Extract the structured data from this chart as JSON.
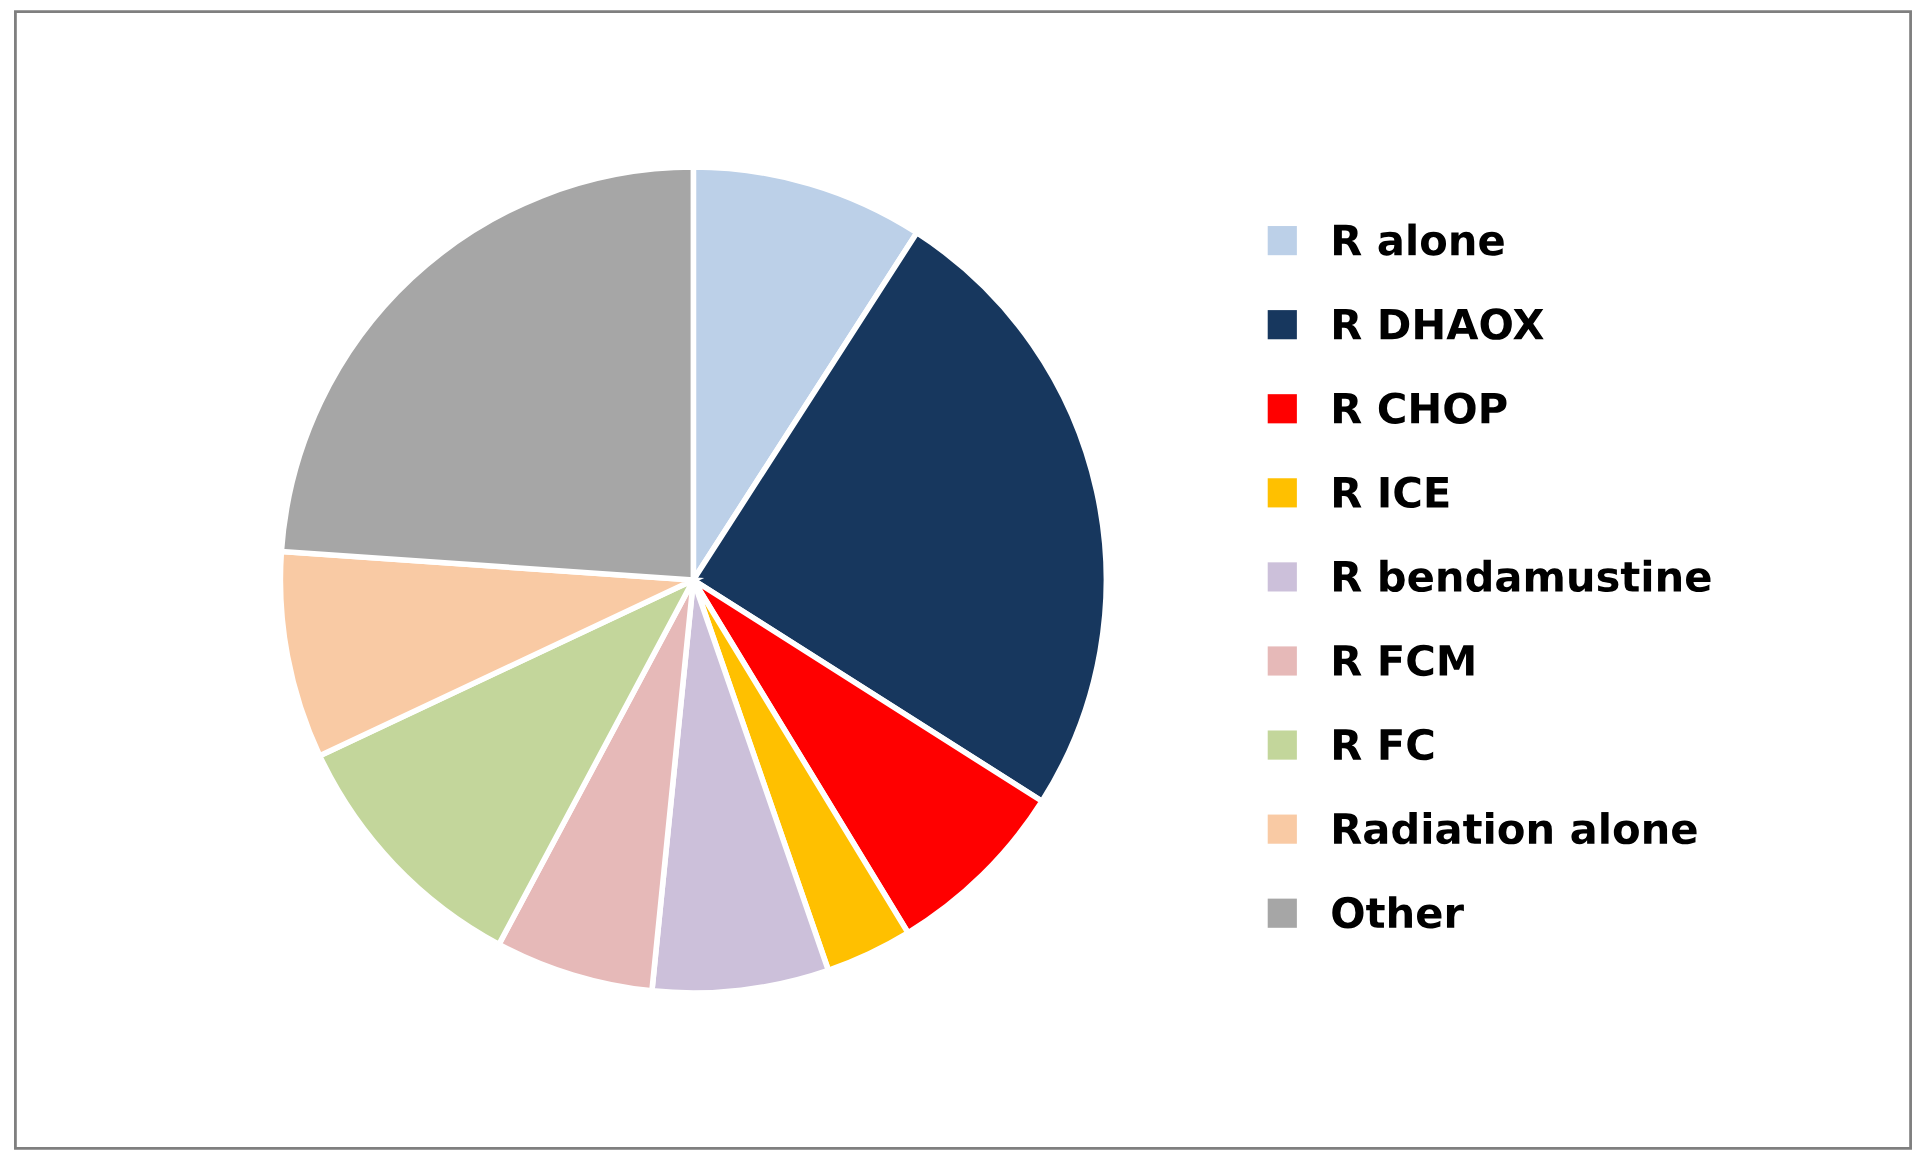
{
  "chart_data": {
    "type": "pie",
    "categories": [
      "R alone",
      "R DHAOX",
      "R CHOP",
      "R ICE",
      "R bendamustine",
      "R FCM",
      "R FC",
      "Radiation alone",
      "Other"
    ],
    "values": [
      9.1,
      24.9,
      7.3,
      3.4,
      6.9,
      6.2,
      10.2,
      8.1,
      23.9
    ],
    "colors": [
      "#bcd0e8",
      "#17375e",
      "#ff0000",
      "#ffc000",
      "#ccc0da",
      "#e6b9b8",
      "#c3d69b",
      "#f9caa4",
      "#a6a6a6"
    ],
    "legend": "right"
  }
}
